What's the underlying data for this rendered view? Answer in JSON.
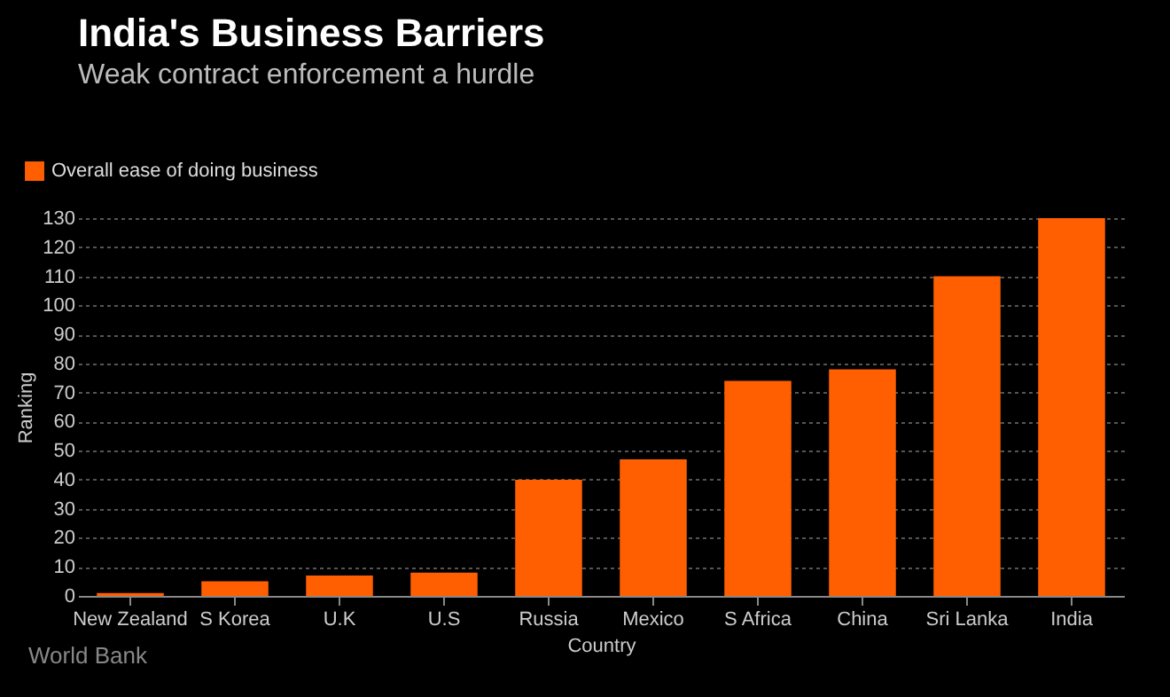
{
  "chart_data": {
    "type": "bar",
    "title": "India's Business Barriers",
    "subtitle": "Weak contract enforcement a hurdle",
    "xlabel": "Country",
    "ylabel": "Ranking",
    "categories": [
      "New Zealand",
      "S Korea",
      "U.K",
      "U.S",
      "Russia",
      "Mexico",
      "S Africa",
      "China",
      "Sri Lanka",
      "India"
    ],
    "series": [
      {
        "name": "Overall ease of doing business",
        "color": "#ff5f00",
        "values": [
          1,
          5,
          7,
          8,
          40,
          47,
          74,
          78,
          110,
          130
        ]
      }
    ],
    "ylim": [
      0,
      130
    ],
    "yticks": [
      0,
      10,
      20,
      30,
      40,
      50,
      60,
      70,
      80,
      90,
      100,
      110,
      120,
      130
    ],
    "grid": "y",
    "legend": "top left",
    "annotations": [
      "World Bank"
    ]
  }
}
